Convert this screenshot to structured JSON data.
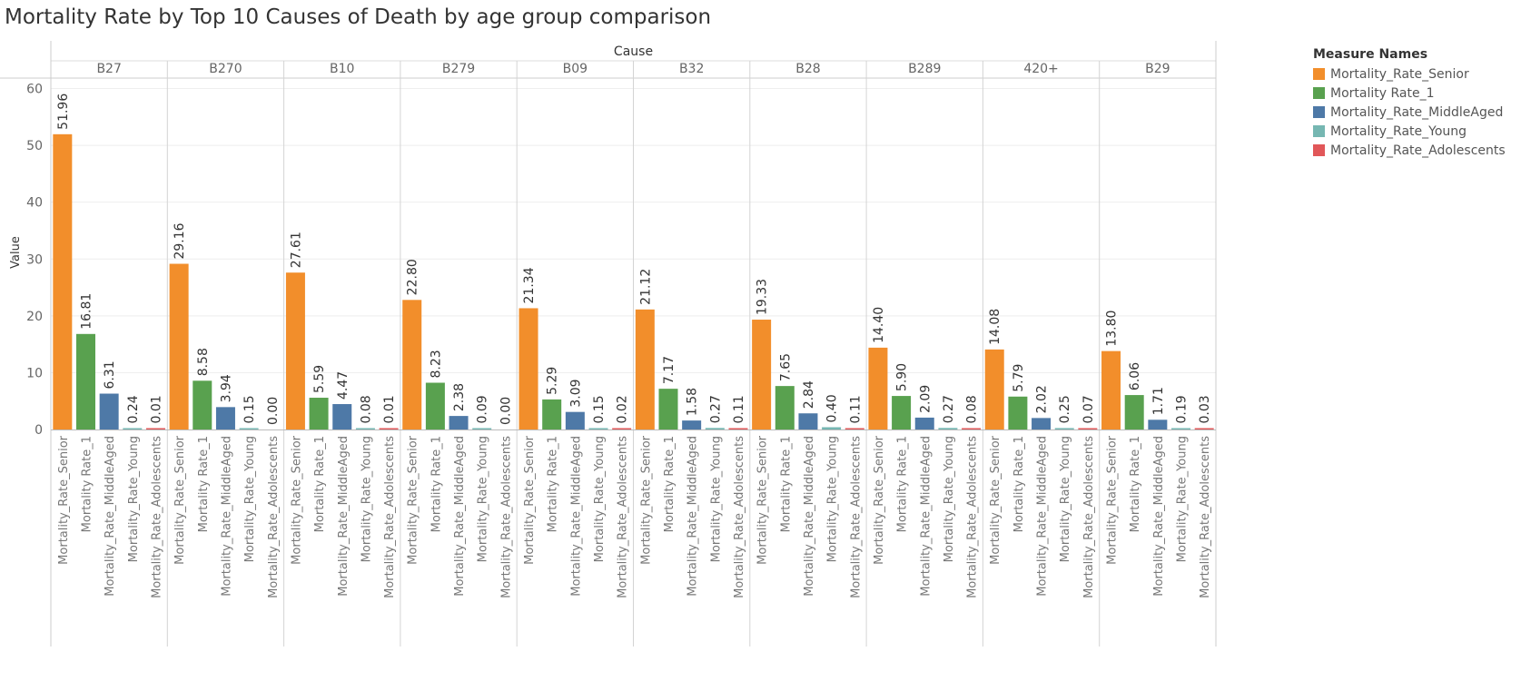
{
  "title": "Mortality Rate by Top 10 Causes of Death by age group comparison",
  "legend": {
    "title": "Measure Names",
    "items": [
      {
        "name": "Mortality_Rate_Senior",
        "color": "#f28e2b"
      },
      {
        "name": "Mortality Rate_1",
        "color": "#59a14f"
      },
      {
        "name": "Mortality_Rate_MiddleAged",
        "color": "#4e79a7"
      },
      {
        "name": "Mortality_Rate_Young",
        "color": "#76b7b2"
      },
      {
        "name": "Mortality_Rate_Adolescents",
        "color": "#e15759"
      }
    ]
  },
  "chart_data": {
    "type": "bar",
    "title": "Mortality Rate by Top 10 Causes of Death by age group comparison",
    "column_header": "Cause",
    "ylabel": "Value",
    "ylim": [
      0,
      60
    ],
    "yticks": [
      0,
      10,
      20,
      30,
      40,
      50,
      60
    ],
    "categories": [
      "B27",
      "B270",
      "B10",
      "B279",
      "B09",
      "B32",
      "B28",
      "B289",
      "420+",
      "B29"
    ],
    "measures": [
      "Mortality_Rate_Senior",
      "Mortality Rate_1",
      "Mortality_Rate_MiddleAged",
      "Mortality_Rate_Young",
      "Mortality_Rate_Adolescents"
    ],
    "series": [
      {
        "name": "Mortality_Rate_Senior",
        "color": "#f28e2b",
        "values": [
          51.96,
          29.16,
          27.61,
          22.8,
          21.34,
          21.12,
          19.33,
          14.4,
          14.08,
          13.8
        ],
        "labels": [
          "51.96",
          "29.16",
          "27.61",
          "22.80",
          "21.34",
          "21.12",
          "19.33",
          "14.40",
          "14.08",
          "13.80"
        ]
      },
      {
        "name": "Mortality Rate_1",
        "color": "#59a14f",
        "values": [
          16.81,
          8.58,
          5.59,
          8.23,
          5.29,
          7.17,
          7.65,
          5.9,
          5.79,
          6.06
        ],
        "labels": [
          "16.81",
          "8.58",
          "5.59",
          "8.23",
          "5.29",
          "7.17",
          "7.65",
          "5.90",
          "5.79",
          "6.06"
        ]
      },
      {
        "name": "Mortality_Rate_MiddleAged",
        "color": "#4e79a7",
        "values": [
          6.31,
          3.94,
          4.47,
          2.38,
          3.09,
          1.58,
          2.84,
          2.09,
          2.02,
          1.71
        ],
        "labels": [
          "6.31",
          "3.94",
          "4.47",
          "2.38",
          "3.09",
          "1.58",
          "2.84",
          "2.09",
          "2.02",
          "1.71"
        ]
      },
      {
        "name": "Mortality_Rate_Young",
        "color": "#76b7b2",
        "values": [
          0.24,
          0.15,
          0.08,
          0.09,
          0.15,
          0.27,
          0.4,
          0.27,
          0.25,
          0.19
        ],
        "labels": [
          "0.24",
          "0.15",
          "0.08",
          "0.09",
          "0.15",
          "0.27",
          "0.40",
          "0.27",
          "0.25",
          "0.19"
        ]
      },
      {
        "name": "Mortality_Rate_Adolescents",
        "color": "#e15759",
        "values": [
          0.01,
          0.0,
          0.01,
          0.0,
          0.02,
          0.11,
          0.11,
          0.08,
          0.07,
          0.03
        ],
        "labels": [
          "0.01",
          "0.00",
          "0.01",
          "0.00",
          "0.02",
          "0.11",
          "0.11",
          "0.08",
          "0.07",
          "0.03"
        ]
      }
    ],
    "grid": true,
    "legend_position": "right"
  }
}
